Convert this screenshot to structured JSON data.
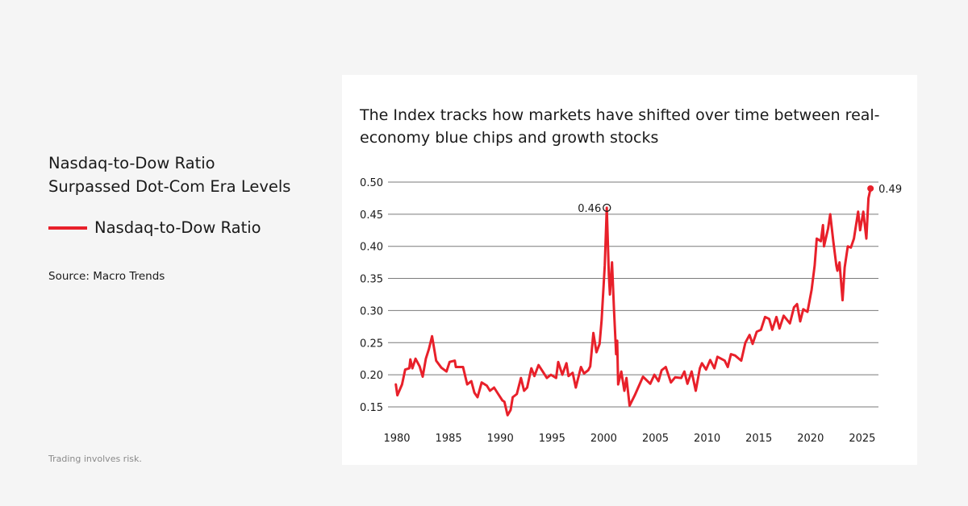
{
  "left_panel": {
    "title_line1": "Nasdaq-to-Dow Ratio",
    "title_line2": "Surpassed Dot-Com Era Levels",
    "legend_label": "Nasdaq-to-Dow Ratio",
    "source": "Source: Macro Trends",
    "disclaimer": "Trading involves risk."
  },
  "chart_data": {
    "type": "line",
    "title": "The Index tracks how markets have shifted over time between real-economy blue chips and growth stocks",
    "xlabel": "",
    "ylabel": "",
    "xlim": [
      1980,
      2026
    ],
    "ylim": [
      0.15,
      0.5
    ],
    "x_ticks": [
      "1980",
      "1985",
      "1990",
      "1995",
      "2000",
      "2005",
      "2010",
      "2015",
      "2020",
      "2025"
    ],
    "y_ticks": [
      "0.50",
      "0.45",
      "0.40",
      "0.35",
      "0.30",
      "0.25",
      "0.20",
      "0.15"
    ],
    "grid": "horizontal",
    "color": "#e8202a",
    "series": [
      {
        "name": "Nasdaq-to-Dow Ratio",
        "points": [
          [
            1979.9,
            0.185
          ],
          [
            1980.05,
            0.168
          ],
          [
            1980.5,
            0.185
          ],
          [
            1980.8,
            0.208
          ],
          [
            1981.2,
            0.21
          ],
          [
            1981.3,
            0.224
          ],
          [
            1981.5,
            0.21
          ],
          [
            1981.8,
            0.225
          ],
          [
            1982.2,
            0.213
          ],
          [
            1982.5,
            0.197
          ],
          [
            1982.8,
            0.225
          ],
          [
            1983.1,
            0.24
          ],
          [
            1983.4,
            0.26
          ],
          [
            1983.8,
            0.222
          ],
          [
            1984.3,
            0.211
          ],
          [
            1984.8,
            0.205
          ],
          [
            1985.1,
            0.22
          ],
          [
            1985.6,
            0.222
          ],
          [
            1985.7,
            0.212
          ],
          [
            1986.4,
            0.212
          ],
          [
            1986.8,
            0.185
          ],
          [
            1987.2,
            0.19
          ],
          [
            1987.5,
            0.172
          ],
          [
            1987.8,
            0.165
          ],
          [
            1988.2,
            0.188
          ],
          [
            1988.7,
            0.183
          ],
          [
            1989.0,
            0.175
          ],
          [
            1989.4,
            0.18
          ],
          [
            1989.8,
            0.17
          ],
          [
            1990.2,
            0.16
          ],
          [
            1990.4,
            0.158
          ],
          [
            1990.7,
            0.137
          ],
          [
            1991.0,
            0.145
          ],
          [
            1991.2,
            0.165
          ],
          [
            1991.6,
            0.17
          ],
          [
            1992.0,
            0.195
          ],
          [
            1992.3,
            0.175
          ],
          [
            1992.6,
            0.18
          ],
          [
            1992.9,
            0.203
          ],
          [
            1993.0,
            0.21
          ],
          [
            1993.3,
            0.198
          ],
          [
            1993.7,
            0.215
          ],
          [
            1994.1,
            0.205
          ],
          [
            1994.5,
            0.195
          ],
          [
            1994.9,
            0.2
          ],
          [
            1995.4,
            0.195
          ],
          [
            1995.6,
            0.22
          ],
          [
            1996.0,
            0.2
          ],
          [
            1996.4,
            0.218
          ],
          [
            1996.6,
            0.198
          ],
          [
            1997.0,
            0.203
          ],
          [
            1997.3,
            0.18
          ],
          [
            1997.8,
            0.212
          ],
          [
            1998.1,
            0.202
          ],
          [
            1998.5,
            0.207
          ],
          [
            1998.7,
            0.213
          ],
          [
            1999.0,
            0.265
          ],
          [
            1999.3,
            0.235
          ],
          [
            1999.6,
            0.248
          ],
          [
            1999.8,
            0.285
          ],
          [
            2000.1,
            0.37
          ],
          [
            2000.3,
            0.46
          ],
          [
            2000.5,
            0.355
          ],
          [
            2000.6,
            0.325
          ],
          [
            2000.8,
            0.375
          ],
          [
            2001.0,
            0.3
          ],
          [
            2001.2,
            0.232
          ],
          [
            2001.3,
            0.253
          ],
          [
            2001.4,
            0.185
          ],
          [
            2001.7,
            0.205
          ],
          [
            2002.0,
            0.175
          ],
          [
            2002.2,
            0.195
          ],
          [
            2002.5,
            0.152
          ],
          [
            2003.0,
            0.168
          ],
          [
            2003.8,
            0.197
          ],
          [
            2004.5,
            0.186
          ],
          [
            2004.9,
            0.2
          ],
          [
            2005.3,
            0.19
          ],
          [
            2005.6,
            0.207
          ],
          [
            2006.0,
            0.212
          ],
          [
            2006.5,
            0.188
          ],
          [
            2006.9,
            0.196
          ],
          [
            2007.5,
            0.195
          ],
          [
            2007.8,
            0.205
          ],
          [
            2008.1,
            0.186
          ],
          [
            2008.5,
            0.205
          ],
          [
            2008.9,
            0.175
          ],
          [
            2009.3,
            0.21
          ],
          [
            2009.5,
            0.218
          ],
          [
            2009.9,
            0.208
          ],
          [
            2010.3,
            0.223
          ],
          [
            2010.7,
            0.21
          ],
          [
            2011.0,
            0.228
          ],
          [
            2011.7,
            0.222
          ],
          [
            2012.0,
            0.212
          ],
          [
            2012.3,
            0.232
          ],
          [
            2012.7,
            0.23
          ],
          [
            2013.3,
            0.222
          ],
          [
            2013.7,
            0.25
          ],
          [
            2014.1,
            0.262
          ],
          [
            2014.4,
            0.248
          ],
          [
            2014.8,
            0.267
          ],
          [
            2015.2,
            0.27
          ],
          [
            2015.6,
            0.29
          ],
          [
            2016.0,
            0.287
          ],
          [
            2016.3,
            0.27
          ],
          [
            2016.7,
            0.29
          ],
          [
            2017.0,
            0.272
          ],
          [
            2017.4,
            0.292
          ],
          [
            2018.0,
            0.28
          ],
          [
            2018.4,
            0.305
          ],
          [
            2018.7,
            0.31
          ],
          [
            2019.0,
            0.283
          ],
          [
            2019.3,
            0.302
          ],
          [
            2019.7,
            0.298
          ],
          [
            2020.1,
            0.332
          ],
          [
            2020.4,
            0.37
          ],
          [
            2020.6,
            0.412
          ],
          [
            2021.0,
            0.408
          ],
          [
            2021.2,
            0.433
          ],
          [
            2021.3,
            0.4
          ],
          [
            2021.7,
            0.428
          ],
          [
            2021.9,
            0.45
          ],
          [
            2022.2,
            0.408
          ],
          [
            2022.5,
            0.37
          ],
          [
            2022.6,
            0.362
          ],
          [
            2022.8,
            0.375
          ],
          [
            2023.1,
            0.316
          ],
          [
            2023.3,
            0.367
          ],
          [
            2023.6,
            0.4
          ],
          [
            2023.9,
            0.398
          ],
          [
            2024.2,
            0.412
          ],
          [
            2024.6,
            0.454
          ],
          [
            2024.8,
            0.425
          ],
          [
            2025.1,
            0.454
          ],
          [
            2025.4,
            0.412
          ],
          [
            2025.6,
            0.475
          ],
          [
            2025.8,
            0.49
          ]
        ]
      }
    ],
    "annotations": [
      {
        "x": 2000.3,
        "y": 0.46,
        "label": "0.46",
        "marker": "open-circle"
      },
      {
        "x": 2025.8,
        "y": 0.49,
        "label": "0.49",
        "marker": "filled-dot"
      }
    ]
  }
}
